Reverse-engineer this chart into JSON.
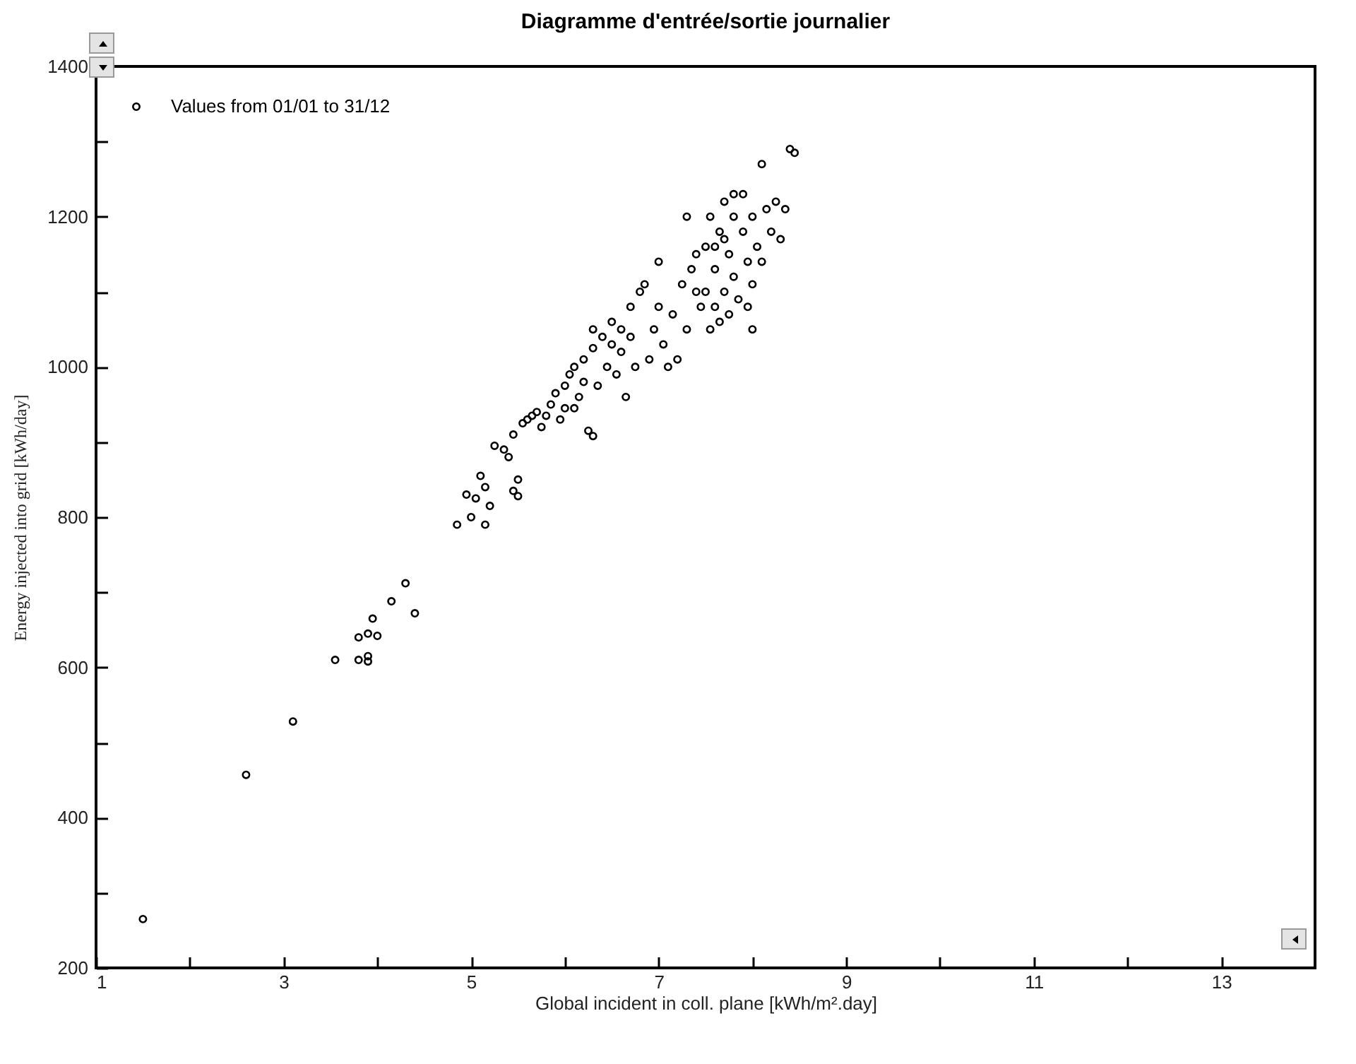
{
  "chart_data": {
    "type": "scatter",
    "title": "Diagramme d'entrée/sortie journalier",
    "xlabel": "Global incident in coll. plane [kWh/m².day]",
    "ylabel": "Energy injected into grid [kWh/day]",
    "xlim": [
      1,
      14
    ],
    "ylim": [
      200,
      1400
    ],
    "xticks": [
      1,
      {
        "value": 2,
        "label": null
      },
      3,
      {
        "value": 4,
        "label": null
      },
      5,
      {
        "value": 6,
        "label": null
      },
      7,
      {
        "value": 8,
        "label": null
      },
      9,
      {
        "value": 10,
        "label": null
      },
      11,
      {
        "value": 12,
        "label": null
      },
      13
    ],
    "yticks": [
      200,
      {
        "value": 300,
        "label": null
      },
      400,
      {
        "value": 500,
        "label": null
      },
      600,
      {
        "value": 700,
        "label": null
      },
      800,
      {
        "value": 900,
        "label": null
      },
      1000,
      {
        "value": 1100,
        "label": null
      },
      1200,
      {
        "value": 1300,
        "label": null
      },
      1400
    ],
    "grid": false,
    "legend": "top left",
    "marker": "circle",
    "series": [
      {
        "name": "Values from 01/01 to 31/12",
        "color": "#000000",
        "x": [
          1.5,
          2.6,
          3.1,
          3.55,
          3.8,
          3.8,
          3.9,
          3.9,
          3.9,
          3.95,
          4.0,
          4.15,
          4.3,
          4.4,
          4.85,
          4.95,
          5.0,
          5.05,
          5.1,
          5.15,
          5.15,
          5.2,
          5.25,
          5.35,
          5.4,
          5.45,
          5.5,
          5.5,
          5.45,
          5.55,
          5.6,
          5.65,
          5.75,
          5.8,
          5.9,
          5.95,
          6.0,
          6.0,
          6.05,
          6.1,
          6.15,
          6.2,
          6.25,
          6.3,
          6.3,
          6.35,
          6.4,
          6.45,
          6.5,
          6.55,
          6.6,
          6.6,
          6.65,
          6.7,
          6.75,
          6.8,
          6.85,
          6.7,
          6.9,
          6.95,
          7.0,
          7.05,
          7.1,
          7.15,
          7.2,
          7.25,
          7.3,
          7.35,
          7.4,
          7.45,
          7.5,
          7.55,
          7.55,
          7.6,
          7.6,
          7.65,
          7.65,
          7.7,
          7.7,
          7.75,
          7.75,
          7.8,
          7.8,
          7.85,
          7.9,
          7.9,
          7.95,
          7.95,
          8.0,
          8.0,
          8.05,
          8.1,
          8.15,
          8.2,
          8.25,
          8.3,
          8.35,
          8.4,
          8.45,
          7.6,
          7.5,
          7.4,
          6.2,
          6.3,
          6.5,
          5.7,
          5.85,
          6.1,
          7.0,
          7.8,
          7.7,
          8.0,
          8.1,
          7.3
        ],
        "values": [
          265,
          457,
          528,
          610,
          610,
          640,
          645,
          615,
          608,
          665,
          642,
          688,
          712,
          672,
          790,
          830,
          800,
          825,
          855,
          790,
          840,
          815,
          895,
          890,
          880,
          835,
          828,
          850,
          910,
          925,
          930,
          935,
          920,
          935,
          965,
          930,
          975,
          945,
          990,
          1000,
          960,
          1010,
          915,
          908,
          1025,
          975,
          1040,
          1000,
          1060,
          990,
          1050,
          1020,
          960,
          1040,
          1000,
          1100,
          1110,
          1080,
          1010,
          1050,
          1140,
          1030,
          1000,
          1070,
          1010,
          1110,
          1050,
          1130,
          1100,
          1080,
          1160,
          1050,
          1200,
          1080,
          1130,
          1060,
          1180,
          1100,
          1220,
          1070,
          1150,
          1200,
          1120,
          1090,
          1180,
          1230,
          1140,
          1080,
          1200,
          1110,
          1160,
          1270,
          1210,
          1180,
          1220,
          1170,
          1210,
          1290,
          1285,
          1160,
          1100,
          1150,
          980,
          1050,
          1030,
          940,
          950,
          945,
          1080,
          1230,
          1170,
          1050,
          1140,
          1200
        ]
      }
    ]
  }
}
